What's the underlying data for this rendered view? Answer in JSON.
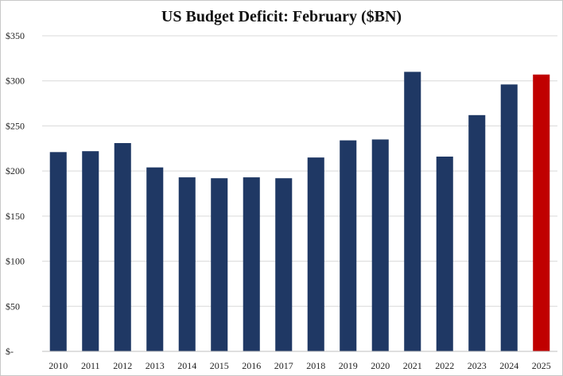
{
  "chart_data": {
    "type": "bar",
    "title": "US Budget Deficit: February ($BN)",
    "categories": [
      "2010",
      "2011",
      "2012",
      "2013",
      "2014",
      "2015",
      "2016",
      "2017",
      "2018",
      "2019",
      "2020",
      "2021",
      "2022",
      "2023",
      "2024",
      "2025"
    ],
    "values": [
      221,
      222,
      231,
      204,
      193,
      192,
      193,
      192,
      215,
      234,
      235,
      310,
      216,
      262,
      296,
      307
    ],
    "ylim": [
      0,
      350
    ],
    "yticks": [
      0,
      50,
      100,
      150,
      200,
      250,
      300,
      350
    ],
    "ytick_labels": [
      "$-",
      "$50",
      "$100",
      "$150",
      "$200",
      "$250",
      "$300",
      "$350"
    ],
    "xlabel": "",
    "ylabel": "",
    "grid": true,
    "legend": "none",
    "colors": {
      "default": "#1f3864",
      "highlight": "#c00000"
    },
    "highlight_category": "2025"
  }
}
